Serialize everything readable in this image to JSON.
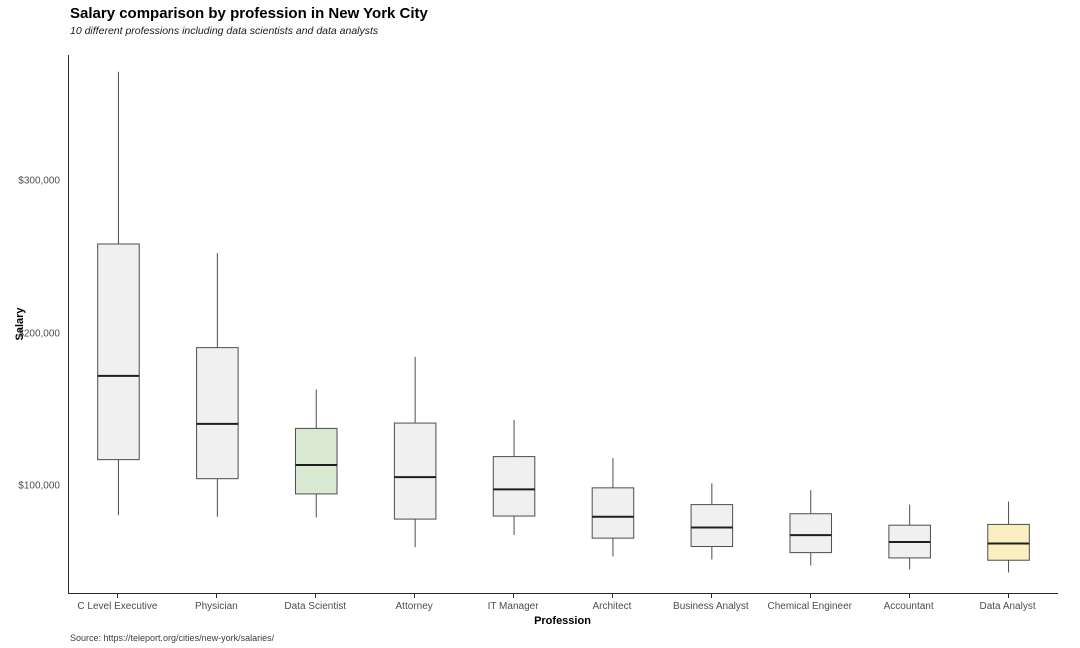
{
  "source": "Source: https://teleport.org/cities/new-york/salaries/",
  "chart_data": {
    "type": "boxplot",
    "title": "Salary comparison by profession in New York City",
    "subtitle": "10 different professions including data scientists and data analysts",
    "xlabel": "Profession",
    "ylabel": "Salary",
    "ylim": [
      30000,
      383000
    ],
    "grid": false,
    "legend": "none",
    "yticks": [
      {
        "value": 100000,
        "label": "$100,000"
      },
      {
        "value": 200000,
        "label": "$200,000"
      },
      {
        "value": 300000,
        "label": "$300,000"
      }
    ],
    "categories": [
      "C Level Executive",
      "Physician",
      "Data Scientist",
      "Attorney",
      "IT Manager",
      "Architect",
      "Business Analyst",
      "Chemical Engineer",
      "Accountant",
      "Data Analyst"
    ],
    "boxes": [
      {
        "label": "C Level Executive",
        "low": 81000,
        "q1": 117500,
        "median": 172500,
        "q3": 259000,
        "high": 372000,
        "fill": "#f0f0f0"
      },
      {
        "label": "Physician",
        "low": 80000,
        "q1": 105000,
        "median": 141000,
        "q3": 191000,
        "high": 253000,
        "fill": "#f0f0f0"
      },
      {
        "label": "Data Scientist",
        "low": 79500,
        "q1": 95000,
        "median": 114000,
        "q3": 138000,
        "high": 163500,
        "fill": "#d9e8d1"
      },
      {
        "label": "Attorney",
        "low": 60000,
        "q1": 78500,
        "median": 106000,
        "q3": 141500,
        "high": 185000,
        "fill": "#f0f0f0"
      },
      {
        "label": "IT Manager",
        "low": 68000,
        "q1": 80500,
        "median": 98000,
        "q3": 119500,
        "high": 143500,
        "fill": "#f0f0f0"
      },
      {
        "label": "Architect",
        "low": 54000,
        "q1": 66000,
        "median": 80000,
        "q3": 99000,
        "high": 118500,
        "fill": "#f0f0f0"
      },
      {
        "label": "Business Analyst",
        "low": 52000,
        "q1": 60500,
        "median": 73000,
        "q3": 88000,
        "high": 102000,
        "fill": "#f0f0f0"
      },
      {
        "label": "Chemical Engineer",
        "low": 48000,
        "q1": 56500,
        "median": 68000,
        "q3": 82000,
        "high": 97500,
        "fill": "#f0f0f0"
      },
      {
        "label": "Accountant",
        "low": 45500,
        "q1": 53000,
        "median": 63500,
        "q3": 74500,
        "high": 88000,
        "fill": "#f0f0f0"
      },
      {
        "label": "Data Analyst",
        "low": 43500,
        "q1": 51500,
        "median": 62500,
        "q3": 75000,
        "high": 90000,
        "fill": "#fbeec1"
      }
    ],
    "colors": {
      "default_fill": "#f0f0f0",
      "data_scientist_fill": "#d9e8d1",
      "data_analyst_fill": "#fbeec1",
      "box_border": "#4d4d4d",
      "median": "#1f1f1f",
      "whisker": "#4d4d4d",
      "axis": "#2b2b2b",
      "tick_label": "#4d4d4d"
    }
  }
}
